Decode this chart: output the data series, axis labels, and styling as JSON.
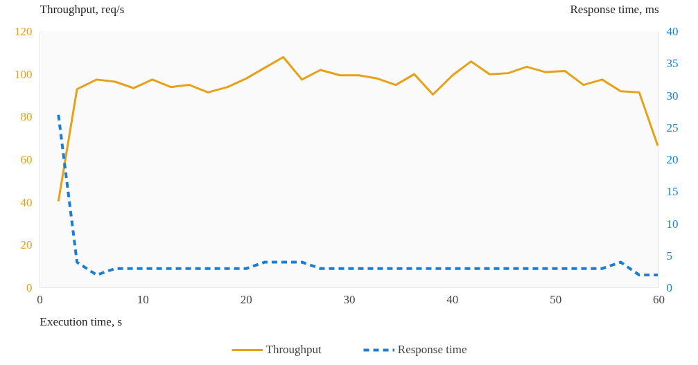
{
  "chart_data": {
    "type": "line",
    "xlabel": "Execution time, s",
    "ylabel": "Throughput, req/s",
    "y2label": "Response time, ms",
    "x": [
      1.8,
      3.6,
      5.5,
      7.3,
      9.1,
      10.9,
      12.7,
      14.5,
      16.3,
      18.2,
      20.0,
      21.8,
      23.6,
      25.4,
      27.2,
      29.1,
      30.9,
      32.7,
      34.5,
      36.3,
      38.1,
      40.0,
      41.8,
      43.6,
      45.4,
      47.2,
      49.0,
      50.9,
      52.7,
      54.5,
      56.3,
      58.1,
      59.9
    ],
    "series": [
      {
        "name": "Throughput",
        "color": "#e6a118",
        "line_style": "solid",
        "values": [
          40.5,
          93,
          97.5,
          96.5,
          93.5,
          97.5,
          94,
          95,
          91.5,
          94,
          98,
          103,
          108,
          97.5,
          102,
          99.5,
          99.5,
          98,
          95,
          100,
          90.5,
          99.5,
          106,
          100,
          100.5,
          103.5,
          101,
          101.5,
          95,
          97.5,
          92,
          91.5,
          66.5
        ]
      },
      {
        "name": "Response time",
        "color": "#1a7fd4",
        "line_style": "dashed",
        "axis": "y2",
        "values": [
          27,
          4,
          2,
          3,
          3,
          3,
          3,
          3,
          3,
          3,
          3,
          4,
          4,
          4,
          3,
          3,
          3,
          3,
          3,
          3,
          3,
          3,
          3,
          3,
          3,
          3,
          3,
          3,
          3,
          3,
          4,
          2,
          2
        ]
      }
    ],
    "xlim": [
      0,
      60
    ],
    "xticks": [
      0,
      10,
      20,
      30,
      40,
      50,
      60
    ],
    "ylim": [
      0,
      120
    ],
    "yticks": [
      0,
      20,
      40,
      60,
      80,
      100,
      120
    ],
    "y2lim": [
      0,
      40
    ],
    "y2ticks": [
      0,
      5,
      10,
      15,
      20,
      25,
      30,
      35,
      40
    ],
    "grid": false,
    "legend": "bottom",
    "marker": "none"
  }
}
